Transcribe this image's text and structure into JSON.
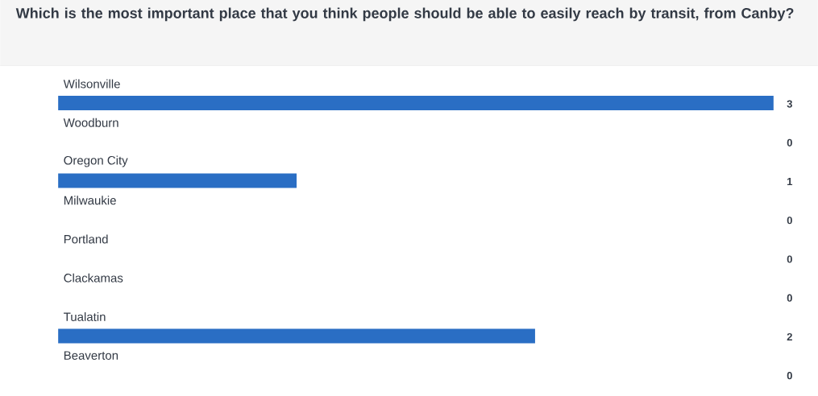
{
  "chart_data": {
    "type": "bar",
    "orientation": "horizontal",
    "title": "Which is the most important place that you think people should be able to easily reach by transit, from Canby?",
    "categories": [
      "Wilsonville",
      "Woodburn",
      "Oregon City",
      "Milwaukie",
      "Portland",
      "Clackamas",
      "Tualatin",
      "Beaverton"
    ],
    "values": [
      3,
      0,
      1,
      0,
      0,
      0,
      2,
      0
    ],
    "color": "#2a6ec4",
    "data_labels": true
  }
}
